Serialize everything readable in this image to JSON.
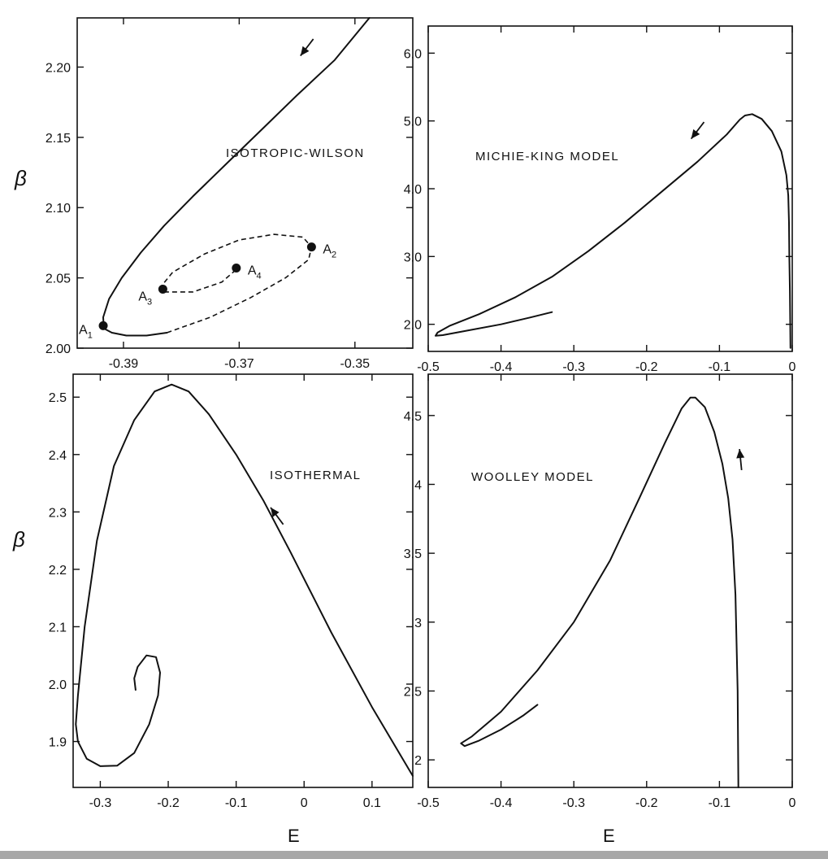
{
  "colors": {
    "ink": "#111111",
    "background": "#ffffff",
    "bottom_bar": "#a8a8a8"
  },
  "axis_labels": {
    "y_left_top": "β",
    "y_left_bottom": "β",
    "x_bottom_left": "E",
    "x_bottom_right": "E"
  },
  "chart_data": [
    {
      "id": "isotropic-wilson",
      "type": "line",
      "label": "ISOTROPIC-WILSON",
      "xlim": [
        -0.398,
        -0.34
      ],
      "ylim": [
        2.0,
        2.235
      ],
      "xticks": [
        -0.39,
        -0.37,
        -0.35
      ],
      "xtick_labels": [
        "-0.39",
        "-0.37",
        "-0.35"
      ],
      "yticks": [
        2.0,
        2.05,
        2.1,
        2.15,
        2.2
      ],
      "ytick_labels": [
        "2.00",
        "2.05",
        "2.10",
        "2.15",
        "2.20"
      ],
      "series": [
        {
          "style": "solid",
          "x": [
            -0.3475,
            -0.3535,
            -0.36,
            -0.366,
            -0.372,
            -0.378,
            -0.383,
            -0.387,
            -0.3903,
            -0.3925,
            -0.3935,
            -0.3934,
            -0.392,
            -0.3895,
            -0.386,
            -0.3825
          ],
          "y": [
            2.235,
            2.205,
            2.18,
            2.156,
            2.132,
            2.108,
            2.087,
            2.068,
            2.05,
            2.035,
            2.022,
            2.014,
            2.011,
            2.009,
            2.009,
            2.011
          ]
        },
        {
          "style": "dashed",
          "x": [
            -0.3825,
            -0.375,
            -0.368,
            -0.362,
            -0.358,
            -0.3575,
            -0.359,
            -0.364,
            -0.37,
            -0.376,
            -0.3815,
            -0.3835,
            -0.383,
            -0.378,
            -0.373,
            -0.3705
          ],
          "y": [
            2.011,
            2.022,
            2.036,
            2.05,
            2.063,
            2.072,
            2.079,
            2.081,
            2.077,
            2.067,
            2.054,
            2.044,
            2.04,
            2.04,
            2.047,
            2.056
          ]
        }
      ],
      "points": [
        {
          "label": "A1",
          "x": -0.3935,
          "y": 2.016
        },
        {
          "label": "A2",
          "x": -0.3575,
          "y": 2.072
        },
        {
          "label": "A3",
          "x": -0.3832,
          "y": 2.042
        },
        {
          "label": "A4",
          "x": -0.3705,
          "y": 2.057
        }
      ],
      "arrow": {
        "x": -0.3583,
        "y": 2.214,
        "direction": "down-left"
      }
    },
    {
      "id": "michie-king",
      "type": "line",
      "label": "MICHIE-KING MODEL",
      "xlim": [
        -0.5,
        0.0
      ],
      "ylim": [
        1.6,
        6.4
      ],
      "xticks": [
        -0.5,
        -0.4,
        -0.3,
        -0.2,
        -0.1,
        0.0
      ],
      "xtick_labels": [
        "-0.5",
        "-0.4",
        "-0.3",
        "-0.2",
        "-0.1",
        "0"
      ],
      "yticks": [
        2.0,
        3.0,
        4.0,
        5.0,
        6.0
      ],
      "ytick_labels": [
        "2.0",
        "3.0",
        "4.0",
        "5.0",
        "6.0"
      ],
      "series": [
        {
          "style": "solid",
          "x": [
            -0.0025,
            -0.0027,
            -0.0032,
            -0.004,
            -0.0045,
            -0.0055,
            -0.008,
            -0.015,
            -0.028,
            -0.042,
            -0.055,
            -0.065,
            -0.072,
            -0.09,
            -0.13,
            -0.18,
            -0.23,
            -0.28,
            -0.33,
            -0.38,
            -0.43,
            -0.47,
            -0.487,
            -0.49,
            -0.48,
            -0.45,
            -0.4,
            -0.36,
            -0.33
          ],
          "y": [
            1.65,
            1.9,
            2.5,
            3.0,
            3.5,
            3.9,
            4.2,
            4.55,
            4.85,
            5.03,
            5.1,
            5.08,
            5.02,
            4.8,
            4.4,
            3.95,
            3.5,
            3.08,
            2.7,
            2.4,
            2.15,
            1.98,
            1.88,
            1.83,
            1.84,
            1.9,
            2.0,
            2.1,
            2.18
          ]
        }
      ],
      "arrow": {
        "x": -0.13,
        "y": 4.86,
        "direction": "down-left"
      }
    },
    {
      "id": "isothermal",
      "type": "line",
      "label": "ISOTHERMAL",
      "xlim": [
        -0.34,
        0.16
      ],
      "ylim": [
        1.82,
        2.54
      ],
      "xticks": [
        -0.3,
        -0.2,
        -0.1,
        0.0,
        0.1
      ],
      "xtick_labels": [
        "-0.3",
        "-0.2",
        "-0.1",
        "0",
        "0.1"
      ],
      "yticks": [
        1.9,
        2.0,
        2.1,
        2.2,
        2.3,
        2.4,
        2.5
      ],
      "ytick_labels": [
        "1.9",
        "2.0",
        "2.1",
        "2.2",
        "2.3",
        "2.4",
        "2.5"
      ],
      "series": [
        {
          "style": "solid",
          "x": [
            0.16,
            0.1,
            0.04,
            -0.02,
            -0.06,
            -0.1,
            -0.14,
            -0.17,
            -0.195,
            -0.22,
            -0.25,
            -0.28,
            -0.305,
            -0.323,
            -0.333,
            -0.336,
            -0.333,
            -0.32,
            -0.3,
            -0.275,
            -0.25,
            -0.228,
            -0.215,
            -0.212,
            -0.218,
            -0.232,
            -0.245,
            -0.25,
            -0.248
          ],
          "y": [
            1.84,
            1.96,
            2.09,
            2.23,
            2.32,
            2.4,
            2.47,
            2.51,
            2.522,
            2.51,
            2.46,
            2.38,
            2.25,
            2.1,
            1.98,
            1.93,
            1.9,
            1.87,
            1.857,
            1.858,
            1.88,
            1.93,
            1.98,
            2.02,
            2.047,
            2.05,
            2.03,
            2.01,
            1.99
          ]
        }
      ],
      "arrow": {
        "x": -0.04,
        "y": 2.293,
        "direction": "up-left"
      }
    },
    {
      "id": "woolley",
      "type": "line",
      "label": "WOOLLEY MODEL",
      "xlim": [
        -0.5,
        0.0
      ],
      "ylim": [
        1.8,
        4.8
      ],
      "xticks": [
        -0.5,
        -0.4,
        -0.3,
        -0.2,
        -0.1,
        0.0
      ],
      "xtick_labels": [
        "-0.5",
        "-0.4",
        "-0.3",
        "-0.2",
        "-0.1",
        "0"
      ],
      "yticks": [
        2.0,
        2.5,
        3.0,
        3.5,
        4.0,
        4.5
      ],
      "ytick_labels": [
        "2",
        "2.5",
        "3",
        "3.5",
        "4",
        "4.5"
      ],
      "series": [
        {
          "style": "solid",
          "x": [
            -0.074,
            -0.075,
            -0.078,
            -0.082,
            -0.088,
            -0.096,
            -0.107,
            -0.12,
            -0.133,
            -0.14,
            -0.152,
            -0.175,
            -0.21,
            -0.25,
            -0.3,
            -0.35,
            -0.4,
            -0.44,
            -0.455,
            -0.45,
            -0.43,
            -0.4,
            -0.37,
            -0.35
          ],
          "y": [
            1.8,
            2.5,
            3.2,
            3.6,
            3.9,
            4.15,
            4.38,
            4.56,
            4.63,
            4.63,
            4.55,
            4.3,
            3.9,
            3.45,
            3.0,
            2.65,
            2.35,
            2.17,
            2.12,
            2.1,
            2.14,
            2.22,
            2.32,
            2.4
          ]
        }
      ],
      "arrow": {
        "x": -0.071,
        "y": 4.18,
        "direction": "up"
      }
    }
  ]
}
